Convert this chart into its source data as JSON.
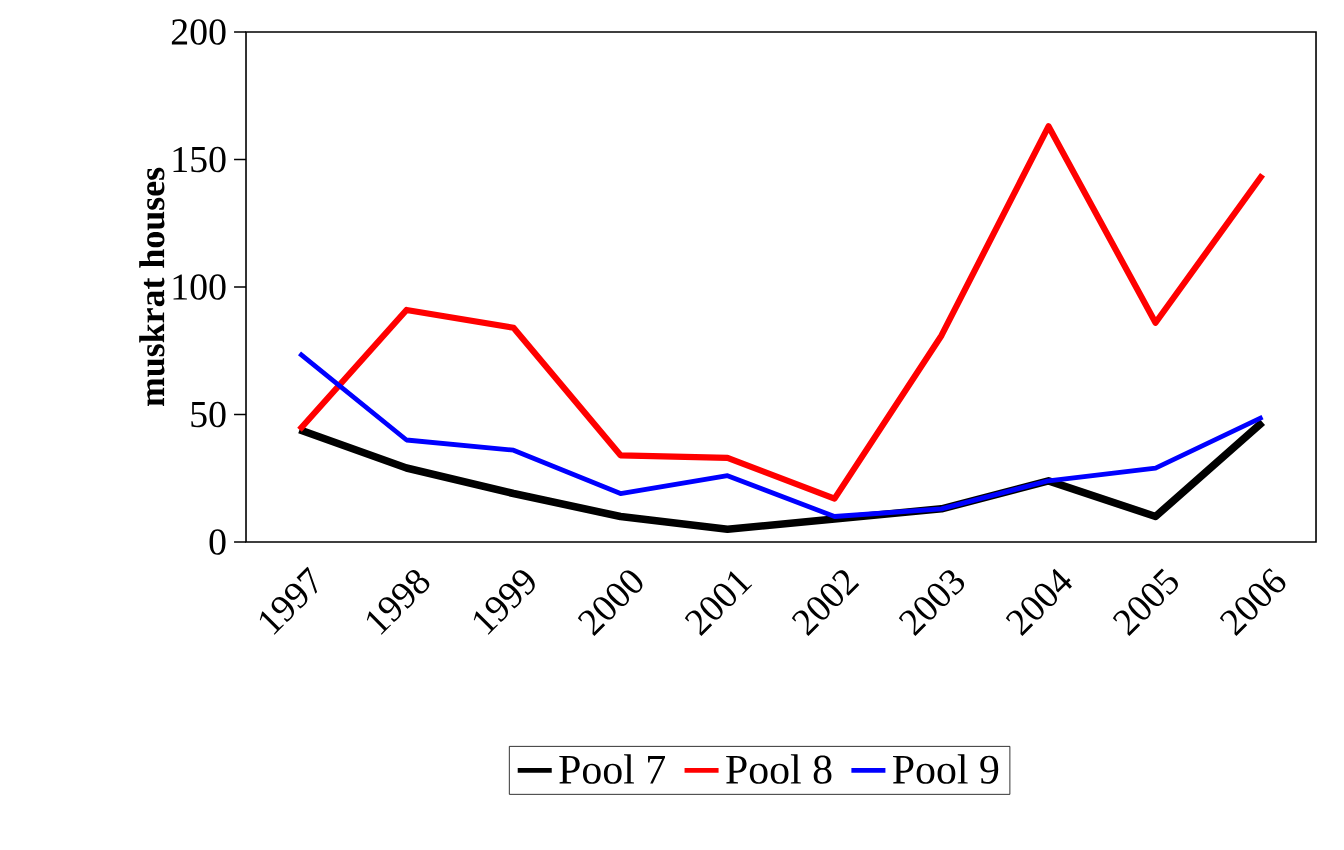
{
  "chart_data": {
    "type": "line",
    "ylabel": "**muskrat houses**",
    "categories": [
      "1997",
      "1998",
      "1999",
      "2000",
      "2001",
      "2002",
      "2003",
      "2004",
      "2005",
      "2006"
    ],
    "series": [
      {
        "name": "Pool 7",
        "color": "#000000",
        "values": [
          44,
          29,
          19,
          10,
          5,
          9,
          13,
          24,
          10,
          47
        ]
      },
      {
        "name": "Pool 8",
        "color": "#ff0000",
        "values": [
          44,
          91,
          84,
          34,
          33,
          17,
          81,
          163,
          86,
          144
        ]
      },
      {
        "name": "Pool 9",
        "color": "#0000ff",
        "values": [
          74,
          40,
          36,
          19,
          26,
          10,
          13,
          24,
          29,
          49
        ]
      }
    ],
    "ylim": [
      0,
      200
    ],
    "yticks": [
      0,
      50,
      100,
      150,
      200
    ],
    "grid": false,
    "legend": "bottom",
    "marker": "none",
    "line_style": "solid"
  }
}
